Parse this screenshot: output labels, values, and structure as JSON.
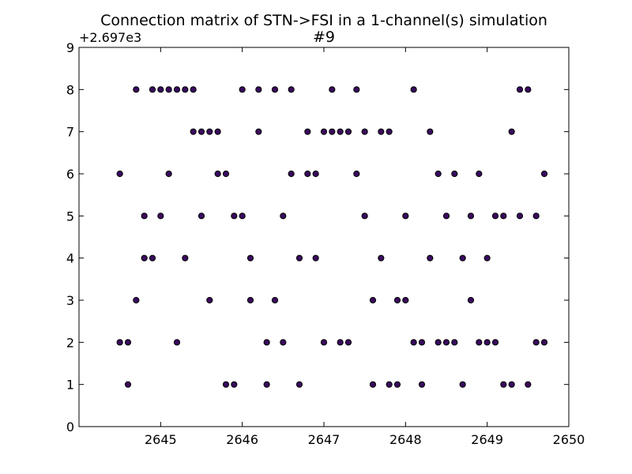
{
  "chart_data": {
    "type": "scatter",
    "title": "Connection matrix of STN->FSI in a 1-channel(s) simulation",
    "subtitle": "#9",
    "xlabel": "",
    "ylabel": "",
    "y_offset_label": "+2.697e3",
    "xlim": [
      2644,
      2650
    ],
    "ylim": [
      0,
      9
    ],
    "x_ticks": [
      2645,
      2646,
      2647,
      2648,
      2649,
      2650
    ],
    "y_ticks": [
      0,
      1,
      2,
      3,
      4,
      5,
      6,
      7,
      8,
      9
    ],
    "grid": false,
    "marker_color": "#3a0a5e",
    "marker_edge": "#000000",
    "points": [
      {
        "x": 2644.5,
        "y": 6
      },
      {
        "x": 2644.5,
        "y": 2
      },
      {
        "x": 2644.6,
        "y": 2
      },
      {
        "x": 2644.6,
        "y": 1
      },
      {
        "x": 2644.7,
        "y": 8
      },
      {
        "x": 2644.7,
        "y": 3
      },
      {
        "x": 2644.8,
        "y": 5
      },
      {
        "x": 2644.8,
        "y": 4
      },
      {
        "x": 2644.9,
        "y": 8
      },
      {
        "x": 2644.9,
        "y": 4
      },
      {
        "x": 2645.0,
        "y": 8
      },
      {
        "x": 2645.0,
        "y": 5
      },
      {
        "x": 2645.1,
        "y": 8
      },
      {
        "x": 2645.1,
        "y": 6
      },
      {
        "x": 2645.2,
        "y": 8
      },
      {
        "x": 2645.2,
        "y": 2
      },
      {
        "x": 2645.3,
        "y": 8
      },
      {
        "x": 2645.3,
        "y": 4
      },
      {
        "x": 2645.4,
        "y": 8
      },
      {
        "x": 2645.4,
        "y": 7
      },
      {
        "x": 2645.5,
        "y": 7
      },
      {
        "x": 2645.5,
        "y": 5
      },
      {
        "x": 2645.6,
        "y": 7
      },
      {
        "x": 2645.6,
        "y": 3
      },
      {
        "x": 2645.7,
        "y": 7
      },
      {
        "x": 2645.7,
        "y": 6
      },
      {
        "x": 2645.8,
        "y": 6
      },
      {
        "x": 2645.8,
        "y": 1
      },
      {
        "x": 2645.9,
        "y": 5
      },
      {
        "x": 2645.9,
        "y": 1
      },
      {
        "x": 2646.0,
        "y": 8
      },
      {
        "x": 2646.0,
        "y": 5
      },
      {
        "x": 2646.1,
        "y": 4
      },
      {
        "x": 2646.1,
        "y": 3
      },
      {
        "x": 2646.2,
        "y": 8
      },
      {
        "x": 2646.2,
        "y": 7
      },
      {
        "x": 2646.3,
        "y": 2
      },
      {
        "x": 2646.3,
        "y": 1
      },
      {
        "x": 2646.4,
        "y": 8
      },
      {
        "x": 2646.4,
        "y": 3
      },
      {
        "x": 2646.5,
        "y": 5
      },
      {
        "x": 2646.5,
        "y": 2
      },
      {
        "x": 2646.6,
        "y": 8
      },
      {
        "x": 2646.6,
        "y": 6
      },
      {
        "x": 2646.7,
        "y": 4
      },
      {
        "x": 2646.7,
        "y": 1
      },
      {
        "x": 2646.8,
        "y": 7
      },
      {
        "x": 2646.8,
        "y": 6
      },
      {
        "x": 2646.9,
        "y": 6
      },
      {
        "x": 2646.9,
        "y": 4
      },
      {
        "x": 2647.0,
        "y": 7
      },
      {
        "x": 2647.0,
        "y": 2
      },
      {
        "x": 2647.1,
        "y": 8
      },
      {
        "x": 2647.1,
        "y": 7
      },
      {
        "x": 2647.2,
        "y": 7
      },
      {
        "x": 2647.2,
        "y": 2
      },
      {
        "x": 2647.3,
        "y": 7
      },
      {
        "x": 2647.3,
        "y": 2
      },
      {
        "x": 2647.4,
        "y": 8
      },
      {
        "x": 2647.4,
        "y": 6
      },
      {
        "x": 2647.5,
        "y": 7
      },
      {
        "x": 2647.5,
        "y": 5
      },
      {
        "x": 2647.6,
        "y": 3
      },
      {
        "x": 2647.6,
        "y": 1
      },
      {
        "x": 2647.7,
        "y": 7
      },
      {
        "x": 2647.7,
        "y": 4
      },
      {
        "x": 2647.8,
        "y": 7
      },
      {
        "x": 2647.8,
        "y": 1
      },
      {
        "x": 2647.9,
        "y": 3
      },
      {
        "x": 2647.9,
        "y": 1
      },
      {
        "x": 2648.0,
        "y": 5
      },
      {
        "x": 2648.0,
        "y": 3
      },
      {
        "x": 2648.1,
        "y": 8
      },
      {
        "x": 2648.1,
        "y": 2
      },
      {
        "x": 2648.2,
        "y": 2
      },
      {
        "x": 2648.2,
        "y": 1
      },
      {
        "x": 2648.3,
        "y": 7
      },
      {
        "x": 2648.3,
        "y": 4
      },
      {
        "x": 2648.4,
        "y": 6
      },
      {
        "x": 2648.4,
        "y": 2
      },
      {
        "x": 2648.5,
        "y": 5
      },
      {
        "x": 2648.5,
        "y": 2
      },
      {
        "x": 2648.6,
        "y": 6
      },
      {
        "x": 2648.6,
        "y": 2
      },
      {
        "x": 2648.7,
        "y": 4
      },
      {
        "x": 2648.7,
        "y": 1
      },
      {
        "x": 2648.8,
        "y": 5
      },
      {
        "x": 2648.8,
        "y": 3
      },
      {
        "x": 2648.9,
        "y": 6
      },
      {
        "x": 2648.9,
        "y": 2
      },
      {
        "x": 2649.0,
        "y": 4
      },
      {
        "x": 2649.0,
        "y": 2
      },
      {
        "x": 2649.1,
        "y": 5
      },
      {
        "x": 2649.1,
        "y": 2
      },
      {
        "x": 2649.2,
        "y": 5
      },
      {
        "x": 2649.2,
        "y": 1
      },
      {
        "x": 2649.3,
        "y": 7
      },
      {
        "x": 2649.3,
        "y": 1
      },
      {
        "x": 2649.4,
        "y": 8
      },
      {
        "x": 2649.4,
        "y": 5
      },
      {
        "x": 2649.5,
        "y": 8
      },
      {
        "x": 2649.5,
        "y": 1
      },
      {
        "x": 2649.6,
        "y": 5
      },
      {
        "x": 2649.6,
        "y": 2
      },
      {
        "x": 2649.7,
        "y": 6
      },
      {
        "x": 2649.7,
        "y": 2
      }
    ]
  }
}
